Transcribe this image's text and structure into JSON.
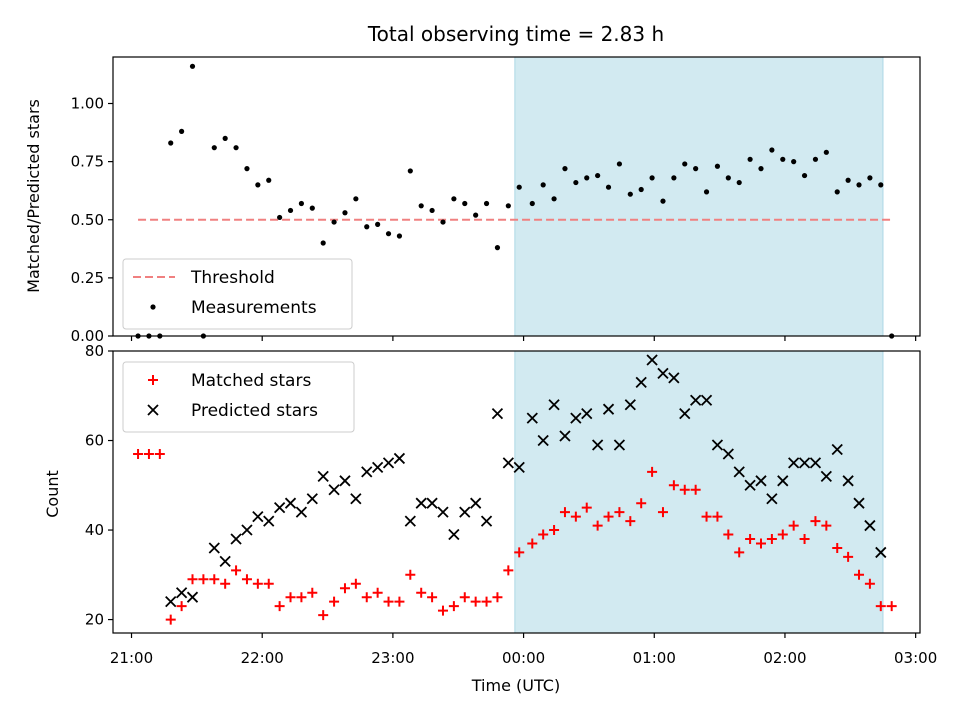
{
  "chart_data": [
    {
      "type": "scatter",
      "title": "Total observing time = 2.83 h",
      "ylabel": "Matched/Predicted stars",
      "xlabel": "",
      "ylim": [
        0,
        1.2
      ],
      "yticks": [
        0.0,
        0.25,
        0.5,
        0.75,
        1.0
      ],
      "ytick_labels": [
        "0.00",
        "0.25",
        "0.50",
        "0.75",
        "1.00"
      ],
      "grid": false,
      "legend_position": "lower-left",
      "highlight_span": {
        "x_start": "23:56",
        "x_end": "02:45",
        "color": "#add8e6"
      },
      "series": [
        {
          "name": "Threshold",
          "kind": "dashed-line",
          "color": "#f08080",
          "x": [
            "21:03",
            "02:50"
          ],
          "y": [
            0.5,
            0.5
          ]
        },
        {
          "name": "Measurements",
          "kind": "points",
          "color": "#000000",
          "points": [
            [
              "21:03",
              0.0
            ],
            [
              "21:08",
              0.0
            ],
            [
              "21:13",
              0.0
            ],
            [
              "21:18",
              0.83
            ],
            [
              "21:23",
              0.88
            ],
            [
              "21:28",
              1.16
            ],
            [
              "21:33",
              0.0
            ],
            [
              "21:38",
              0.81
            ],
            [
              "21:43",
              0.85
            ],
            [
              "21:48",
              0.81
            ],
            [
              "21:53",
              0.72
            ],
            [
              "21:58",
              0.65
            ],
            [
              "22:03",
              0.67
            ],
            [
              "22:08",
              0.51
            ],
            [
              "22:13",
              0.54
            ],
            [
              "22:18",
              0.57
            ],
            [
              "22:23",
              0.55
            ],
            [
              "22:28",
              0.4
            ],
            [
              "22:33",
              0.49
            ],
            [
              "22:38",
              0.53
            ],
            [
              "22:43",
              0.59
            ],
            [
              "22:48",
              0.47
            ],
            [
              "22:53",
              0.48
            ],
            [
              "22:58",
              0.44
            ],
            [
              "23:03",
              0.43
            ],
            [
              "23:08",
              0.71
            ],
            [
              "23:13",
              0.56
            ],
            [
              "23:18",
              0.54
            ],
            [
              "23:23",
              0.49
            ],
            [
              "23:28",
              0.59
            ],
            [
              "23:33",
              0.57
            ],
            [
              "23:38",
              0.52
            ],
            [
              "23:43",
              0.57
            ],
            [
              "23:48",
              0.38
            ],
            [
              "23:53",
              0.56
            ],
            [
              "23:58",
              0.64
            ],
            [
              "00:04",
              0.57
            ],
            [
              "00:09",
              0.65
            ],
            [
              "00:14",
              0.59
            ],
            [
              "00:19",
              0.72
            ],
            [
              "00:24",
              0.66
            ],
            [
              "00:29",
              0.68
            ],
            [
              "00:34",
              0.69
            ],
            [
              "00:39",
              0.64
            ],
            [
              "00:44",
              0.74
            ],
            [
              "00:49",
              0.61
            ],
            [
              "00:54",
              0.63
            ],
            [
              "00:59",
              0.68
            ],
            [
              "01:04",
              0.58
            ],
            [
              "01:09",
              0.68
            ],
            [
              "01:14",
              0.74
            ],
            [
              "01:19",
              0.72
            ],
            [
              "01:24",
              0.62
            ],
            [
              "01:29",
              0.73
            ],
            [
              "01:34",
              0.68
            ],
            [
              "01:39",
              0.66
            ],
            [
              "01:44",
              0.76
            ],
            [
              "01:49",
              0.72
            ],
            [
              "01:54",
              0.8
            ],
            [
              "01:59",
              0.76
            ],
            [
              "02:04",
              0.75
            ],
            [
              "02:09",
              0.69
            ],
            [
              "02:14",
              0.76
            ],
            [
              "02:19",
              0.79
            ],
            [
              "02:24",
              0.62
            ],
            [
              "02:29",
              0.67
            ],
            [
              "02:34",
              0.65
            ],
            [
              "02:39",
              0.68
            ],
            [
              "02:44",
              0.65
            ],
            [
              "02:49",
              0.0
            ]
          ]
        }
      ]
    },
    {
      "type": "scatter",
      "title": "",
      "ylabel": "Count",
      "xlabel": "Time (UTC)",
      "ylim": [
        17,
        80
      ],
      "yticks": [
        20,
        40,
        60,
        80
      ],
      "ytick_labels": [
        "20",
        "40",
        "60",
        "80"
      ],
      "xticks": [
        "21:00",
        "22:00",
        "23:00",
        "00:00",
        "01:00",
        "02:00",
        "03:00"
      ],
      "grid": false,
      "legend_position": "upper-left",
      "highlight_span": {
        "x_start": "23:56",
        "x_end": "02:45",
        "color": "#add8e6"
      },
      "series": [
        {
          "name": "Matched stars",
          "marker": "plus",
          "color": "#ff0000",
          "points": [
            [
              "21:03",
              57
            ],
            [
              "21:08",
              57
            ],
            [
              "21:13",
              57
            ],
            [
              "21:18",
              20
            ],
            [
              "21:23",
              23
            ],
            [
              "21:28",
              29
            ],
            [
              "21:33",
              29
            ],
            [
              "21:38",
              29
            ],
            [
              "21:43",
              28
            ],
            [
              "21:48",
              31
            ],
            [
              "21:53",
              29
            ],
            [
              "21:58",
              28
            ],
            [
              "22:03",
              28
            ],
            [
              "22:08",
              23
            ],
            [
              "22:13",
              25
            ],
            [
              "22:18",
              25
            ],
            [
              "22:23",
              26
            ],
            [
              "22:28",
              21
            ],
            [
              "22:33",
              24
            ],
            [
              "22:38",
              27
            ],
            [
              "22:43",
              28
            ],
            [
              "22:48",
              25
            ],
            [
              "22:53",
              26
            ],
            [
              "22:58",
              24
            ],
            [
              "23:03",
              24
            ],
            [
              "23:08",
              30
            ],
            [
              "23:13",
              26
            ],
            [
              "23:18",
              25
            ],
            [
              "23:23",
              22
            ],
            [
              "23:28",
              23
            ],
            [
              "23:33",
              25
            ],
            [
              "23:38",
              24
            ],
            [
              "23:43",
              24
            ],
            [
              "23:48",
              25
            ],
            [
              "23:53",
              31
            ],
            [
              "23:58",
              35
            ],
            [
              "00:04",
              37
            ],
            [
              "00:09",
              39
            ],
            [
              "00:14",
              40
            ],
            [
              "00:19",
              44
            ],
            [
              "00:24",
              43
            ],
            [
              "00:29",
              45
            ],
            [
              "00:34",
              41
            ],
            [
              "00:39",
              43
            ],
            [
              "00:44",
              44
            ],
            [
              "00:49",
              42
            ],
            [
              "00:54",
              46
            ],
            [
              "00:59",
              53
            ],
            [
              "01:04",
              44
            ],
            [
              "01:09",
              50
            ],
            [
              "01:14",
              49
            ],
            [
              "01:19",
              49
            ],
            [
              "01:24",
              43
            ],
            [
              "01:29",
              43
            ],
            [
              "01:34",
              39
            ],
            [
              "01:39",
              35
            ],
            [
              "01:44",
              38
            ],
            [
              "01:49",
              37
            ],
            [
              "01:54",
              38
            ],
            [
              "01:59",
              39
            ],
            [
              "02:04",
              41
            ],
            [
              "02:09",
              38
            ],
            [
              "02:14",
              42
            ],
            [
              "02:19",
              41
            ],
            [
              "02:24",
              36
            ],
            [
              "02:29",
              34
            ],
            [
              "02:34",
              30
            ],
            [
              "02:39",
              28
            ],
            [
              "02:44",
              23
            ],
            [
              "02:49",
              23
            ]
          ]
        },
        {
          "name": "Predicted stars",
          "marker": "x",
          "color": "#000000",
          "points": [
            [
              "21:18",
              24
            ],
            [
              "21:23",
              26
            ],
            [
              "21:28",
              25
            ],
            [
              "21:38",
              36
            ],
            [
              "21:43",
              33
            ],
            [
              "21:48",
              38
            ],
            [
              "21:53",
              40
            ],
            [
              "21:58",
              43
            ],
            [
              "22:03",
              42
            ],
            [
              "22:08",
              45
            ],
            [
              "22:13",
              46
            ],
            [
              "22:18",
              44
            ],
            [
              "22:23",
              47
            ],
            [
              "22:28",
              52
            ],
            [
              "22:33",
              49
            ],
            [
              "22:38",
              51
            ],
            [
              "22:43",
              47
            ],
            [
              "22:48",
              53
            ],
            [
              "22:53",
              54
            ],
            [
              "22:58",
              55
            ],
            [
              "23:03",
              56
            ],
            [
              "23:08",
              42
            ],
            [
              "23:13",
              46
            ],
            [
              "23:18",
              46
            ],
            [
              "23:23",
              44
            ],
            [
              "23:28",
              39
            ],
            [
              "23:33",
              44
            ],
            [
              "23:38",
              46
            ],
            [
              "23:43",
              42
            ],
            [
              "23:48",
              66
            ],
            [
              "23:53",
              55
            ],
            [
              "23:58",
              54
            ],
            [
              "00:04",
              65
            ],
            [
              "00:09",
              60
            ],
            [
              "00:14",
              68
            ],
            [
              "00:19",
              61
            ],
            [
              "00:24",
              65
            ],
            [
              "00:29",
              66
            ],
            [
              "00:34",
              59
            ],
            [
              "00:39",
              67
            ],
            [
              "00:44",
              59
            ],
            [
              "00:49",
              68
            ],
            [
              "00:54",
              73
            ],
            [
              "00:59",
              78
            ],
            [
              "01:04",
              75
            ],
            [
              "01:09",
              74
            ],
            [
              "01:14",
              66
            ],
            [
              "01:19",
              69
            ],
            [
              "01:24",
              69
            ],
            [
              "01:29",
              59
            ],
            [
              "01:34",
              57
            ],
            [
              "01:39",
              53
            ],
            [
              "01:44",
              50
            ],
            [
              "01:49",
              51
            ],
            [
              "01:54",
              47
            ],
            [
              "01:59",
              51
            ],
            [
              "02:04",
              55
            ],
            [
              "02:09",
              55
            ],
            [
              "02:14",
              55
            ],
            [
              "02:19",
              52
            ],
            [
              "02:24",
              58
            ],
            [
              "02:29",
              51
            ],
            [
              "02:34",
              46
            ],
            [
              "02:39",
              41
            ],
            [
              "02:44",
              35
            ]
          ]
        }
      ]
    }
  ]
}
